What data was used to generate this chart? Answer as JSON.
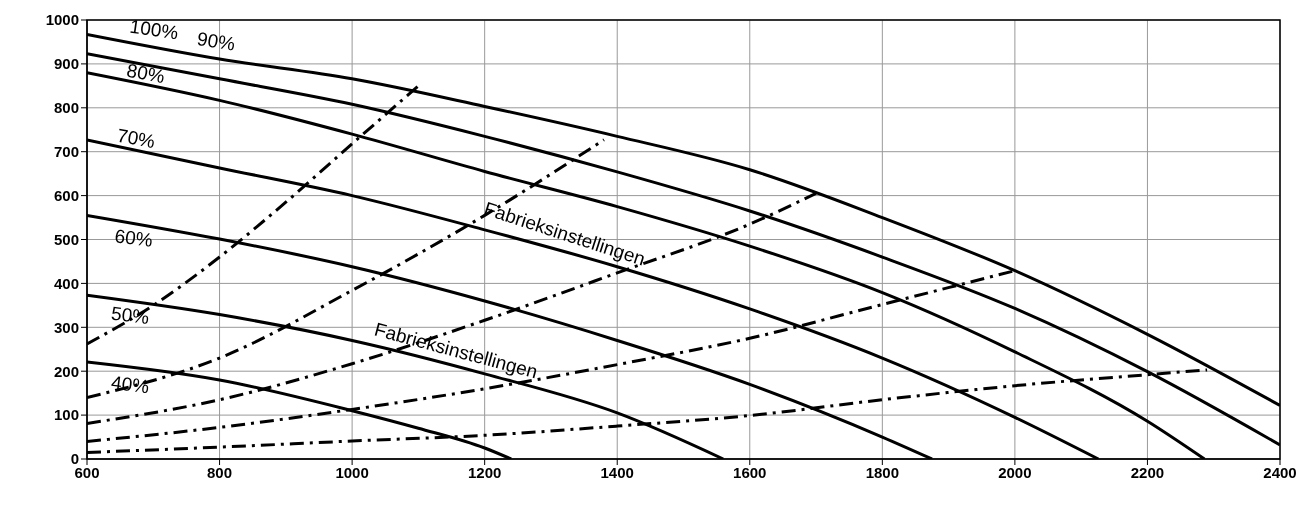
{
  "chart_data": {
    "type": "line",
    "xlim": [
      600,
      2400
    ],
    "xticks": [
      600,
      800,
      1000,
      1200,
      1400,
      1600,
      1800,
      2000,
      2200,
      2400
    ],
    "ylim": [
      0,
      1000
    ],
    "yticks": [
      0,
      100,
      200,
      300,
      400,
      500,
      600,
      700,
      800,
      900,
      1000
    ],
    "grid": true,
    "marker": "none",
    "series": [
      {
        "color": "#000000",
        "line_style": "solid",
        "x": [
          600,
          800,
          1000,
          1200,
          1400,
          1600,
          1800,
          2000,
          2200,
          2400
        ],
        "values": [
          967,
          911,
          866,
          803,
          735,
          659,
          550,
          429,
          284,
          122
        ]
      },
      {
        "color": "#000000",
        "line_style": "solid",
        "x": [
          600,
          800,
          1000,
          1200,
          1400,
          1600,
          1800,
          2000,
          2200,
          2400
        ],
        "values": [
          923,
          866,
          808,
          735,
          654,
          565,
          460,
          343,
          199,
          32
        ]
      },
      {
        "color": "#000000",
        "line_style": "solid",
        "x": [
          600,
          800,
          1000,
          1200,
          1400,
          1600,
          1800,
          2000,
          2200,
          2286
        ],
        "values": [
          880,
          817,
          740,
          655,
          575,
          485,
          379,
          244,
          86,
          0
        ]
      },
      {
        "color": "#000000",
        "line_style": "solid",
        "x": [
          600,
          800,
          1000,
          1200,
          1400,
          1600,
          1800,
          2000,
          2126
        ],
        "values": [
          727,
          663,
          600,
          522,
          438,
          342,
          230,
          95,
          0
        ]
      },
      {
        "color": "#000000",
        "line_style": "solid",
        "x": [
          600,
          800,
          1000,
          1200,
          1400,
          1600,
          1800,
          1875
        ],
        "values": [
          555,
          501,
          438,
          360,
          270,
          170,
          50,
          0
        ]
      },
      {
        "color": "#000000",
        "line_style": "solid",
        "x": [
          600,
          800,
          1000,
          1200,
          1400,
          1560
        ],
        "values": [
          373,
          329,
          270,
          194,
          105,
          0
        ]
      },
      {
        "color": "#000000",
        "line_style": "solid",
        "x": [
          600,
          800,
          1000,
          1100,
          1200,
          1240
        ],
        "values": [
          221,
          180,
          110,
          70,
          25,
          0
        ]
      },
      {
        "color": "#000000",
        "line_style": "dashed",
        "x": [
          600,
          700,
          800,
          900,
          1000,
          1100
        ],
        "values": [
          262,
          350,
          460,
          585,
          718,
          850
        ]
      },
      {
        "color": "#000000",
        "line_style": "dashed",
        "x": [
          600,
          800,
          1000,
          1200,
          1380
        ],
        "values": [
          140,
          230,
          384,
          555,
          727
        ]
      },
      {
        "color": "#000000",
        "line_style": "dashed",
        "x": [
          600,
          800,
          1000,
          1200,
          1400,
          1600,
          1700
        ],
        "values": [
          81,
          135,
          217,
          316,
          424,
          535,
          605
        ]
      },
      {
        "color": "#000000",
        "line_style": "dashed",
        "x": [
          600,
          800,
          1000,
          1200,
          1400,
          1600,
          1800,
          2000
        ],
        "values": [
          40,
          72,
          113,
          160,
          215,
          275,
          352,
          429
        ]
      },
      {
        "color": "#000000",
        "line_style": "dashed",
        "x": [
          600,
          800,
          1000,
          1200,
          1400,
          1600,
          1800,
          2000,
          2200,
          2290
        ],
        "values": [
          15,
          27,
          41,
          54,
          75,
          99,
          135,
          167,
          192,
          203
        ]
      }
    ],
    "annotations": [
      "100%",
      "90%",
      "80%",
      "70%",
      "60%",
      "50%",
      "40%",
      "Fabrieksinstellingen",
      "Fabrieksinstellingen"
    ]
  }
}
